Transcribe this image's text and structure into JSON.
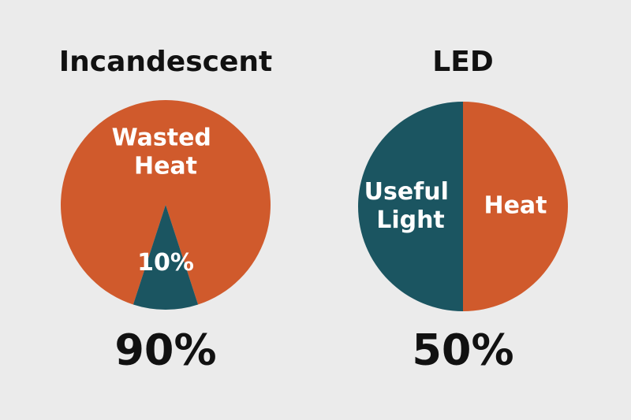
{
  "chart_data": [
    {
      "type": "pie",
      "title": "Incandescent",
      "categories": [
        "Wasted Heat",
        null
      ],
      "values": [
        90,
        10
      ],
      "value_labels": [
        "90%",
        "10%"
      ],
      "colors": [
        "#d05a2c",
        "#1b5561"
      ]
    },
    {
      "type": "pie",
      "title": "LED",
      "categories": [
        "Useful Light",
        "Heat"
      ],
      "values": [
        50,
        50
      ],
      "value_labels": [
        "50%",
        null
      ],
      "colors": [
        "#1b5561",
        "#d05a2c"
      ]
    }
  ]
}
